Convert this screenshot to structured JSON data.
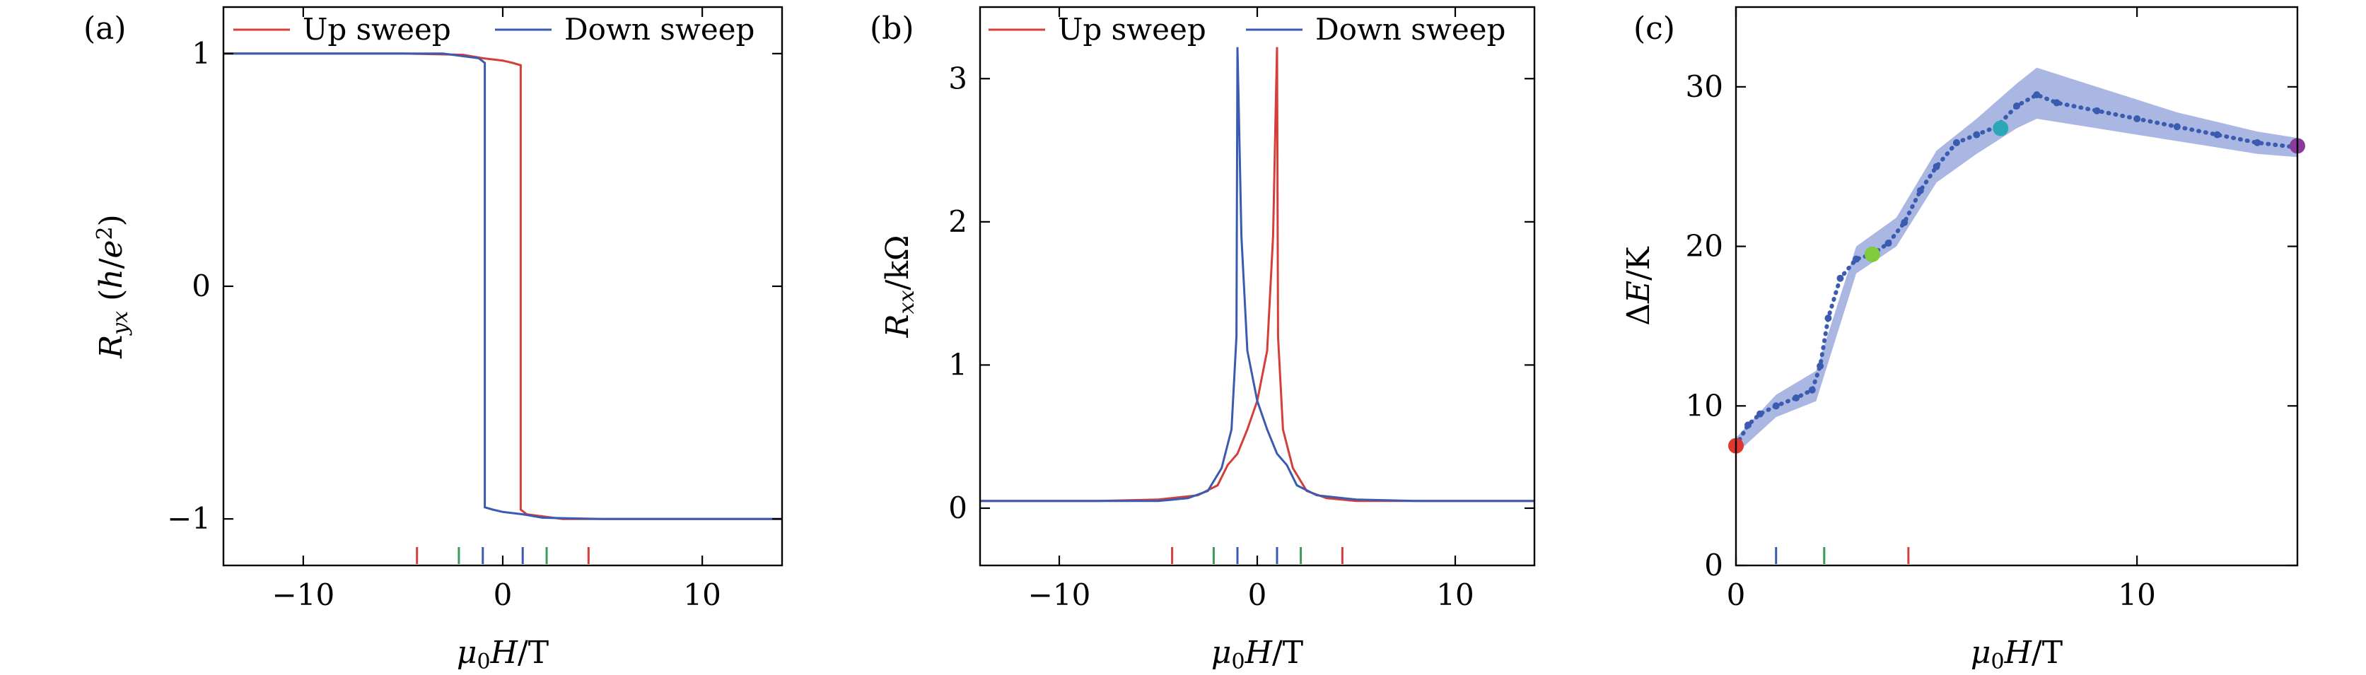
{
  "colors": {
    "up": "#d43f3a",
    "down": "#3a5bb0",
    "band": "#8f9fd9",
    "axis": "#000000"
  },
  "chart_data": [
    {
      "panel": "(a)",
      "type": "line",
      "xlabel": "μ0H/T",
      "ylabel": "Ryx (h/e²)",
      "xlim": [
        -14,
        14
      ],
      "ylim": [
        -1.2,
        1.2
      ],
      "xticks": [
        -10,
        0,
        10
      ],
      "yticks": [
        -1,
        0,
        1
      ],
      "legend": "top",
      "series": [
        {
          "name": "Up sweep",
          "color_key": "up",
          "x": [
            -14,
            -5,
            -2,
            -1,
            0,
            0.5,
            0.9,
            0.9,
            1.2,
            3,
            14
          ],
          "y": [
            1,
            1,
            0.995,
            0.98,
            0.97,
            0.96,
            0.95,
            -0.96,
            -0.98,
            -1,
            -1
          ]
        },
        {
          "name": "Down sweep",
          "color_key": "down",
          "x": [
            14,
            5,
            2,
            1,
            0,
            -0.5,
            -0.9,
            -0.9,
            -1.2,
            -3,
            -14
          ],
          "y": [
            -1,
            -1,
            -0.995,
            -0.98,
            -0.97,
            -0.96,
            -0.95,
            0.96,
            0.98,
            1,
            1
          ]
        }
      ],
      "marks": [
        {
          "x": -4.3,
          "color_key": "up"
        },
        {
          "x": -2.2,
          "color_key": "green"
        },
        {
          "x": -1.0,
          "color_key": "down"
        },
        {
          "x": 1.0,
          "color_key": "down"
        },
        {
          "x": 2.2,
          "color_key": "green"
        },
        {
          "x": 4.3,
          "color_key": "up"
        }
      ]
    },
    {
      "panel": "(b)",
      "type": "line",
      "xlabel": "μ0H/T",
      "ylabel": "Rxx/kΩ",
      "xlim": [
        -14,
        14
      ],
      "ylim": [
        -0.4,
        3.5
      ],
      "xticks": [
        -10,
        0,
        10
      ],
      "yticks": [
        0,
        1,
        2,
        3
      ],
      "legend": "top",
      "series": [
        {
          "name": "Up sweep",
          "color_key": "up",
          "x": [
            -14,
            -8,
            -5,
            -3,
            -2,
            -1.5,
            -1.0,
            -0.5,
            0,
            0.5,
            0.8,
            0.95,
            1.0,
            1.05,
            1.3,
            1.8,
            2.5,
            3.5,
            5,
            8,
            14
          ],
          "y": [
            0.05,
            0.05,
            0.06,
            0.09,
            0.16,
            0.3,
            0.38,
            0.55,
            0.75,
            1.1,
            1.9,
            2.9,
            3.22,
            1.2,
            0.55,
            0.28,
            0.12,
            0.07,
            0.05,
            0.05,
            0.05
          ]
        },
        {
          "name": "Down sweep",
          "color_key": "down",
          "x": [
            14,
            8,
            5,
            3,
            2,
            1.5,
            1.0,
            0.5,
            0,
            -0.5,
            -0.8,
            -0.95,
            -1.0,
            -1.05,
            -1.3,
            -1.8,
            -2.5,
            -3.5,
            -5,
            -8,
            -14
          ],
          "y": [
            0.05,
            0.05,
            0.06,
            0.09,
            0.16,
            0.3,
            0.38,
            0.55,
            0.75,
            1.1,
            1.9,
            2.9,
            3.22,
            1.2,
            0.55,
            0.28,
            0.12,
            0.07,
            0.05,
            0.05,
            0.05
          ]
        }
      ],
      "marks": [
        {
          "x": -4.3,
          "color_key": "up"
        },
        {
          "x": -2.2,
          "color_key": "green"
        },
        {
          "x": -1.0,
          "color_key": "down"
        },
        {
          "x": 1.0,
          "color_key": "down"
        },
        {
          "x": 2.2,
          "color_key": "green"
        },
        {
          "x": 4.3,
          "color_key": "up"
        }
      ]
    },
    {
      "panel": "(c)",
      "type": "scatter",
      "xlabel": "μ0H/T",
      "ylabel": "ΔE/K",
      "xlim": [
        0,
        14
      ],
      "ylim": [
        0,
        35
      ],
      "xticks": [
        0,
        10
      ],
      "yticks": [
        0,
        10,
        20,
        30
      ],
      "series": [
        {
          "name": "",
          "color_key": "down",
          "x": [
            0,
            0.3,
            0.6,
            1.0,
            1.5,
            1.9,
            2.1,
            2.3,
            2.6,
            3.0,
            3.4,
            3.8,
            4.2,
            4.6,
            5.0,
            5.5,
            6.0,
            6.5,
            7.0,
            7.5,
            8.0,
            9.0,
            10.0,
            11.0,
            12.0,
            13.0,
            14.0
          ],
          "y": [
            7.5,
            8.8,
            9.5,
            10.0,
            10.5,
            11.0,
            12.5,
            15.5,
            18.0,
            19.2,
            19.5,
            20.2,
            21.5,
            23.5,
            25.0,
            26.5,
            27.0,
            27.5,
            28.8,
            29.5,
            29.0,
            28.5,
            28.0,
            27.5,
            27.0,
            26.5,
            26.2
          ]
        },
        {
          "name": "",
          "color_key": "band",
          "x": [
            0,
            1,
            2,
            3,
            4,
            5,
            6,
            7,
            7.5,
            8,
            9,
            10,
            11,
            12,
            13,
            14
          ],
          "y_low": [
            7.0,
            9.3,
            10.3,
            18.3,
            20.0,
            24.0,
            25.8,
            27.4,
            28.0,
            27.8,
            27.4,
            27.0,
            26.6,
            26.2,
            25.8,
            25.6
          ],
          "y_high": [
            8.0,
            10.7,
            12.2,
            20.0,
            21.8,
            26.0,
            28.0,
            30.2,
            31.2,
            30.8,
            30.0,
            29.2,
            28.4,
            27.8,
            27.2,
            26.8
          ]
        }
      ],
      "highlights": [
        {
          "x": 0,
          "y": 7.5,
          "color": "#e0382f"
        },
        {
          "x": 3.4,
          "y": 19.5,
          "color": "#7fcb3e"
        },
        {
          "x": 6.6,
          "y": 27.4,
          "color": "#2aa8b8"
        },
        {
          "x": 14.0,
          "y": 26.3,
          "color": "#8a3a9a"
        }
      ],
      "marks": [
        {
          "x": 1.0,
          "color_key": "down"
        },
        {
          "x": 2.2,
          "color_key": "green"
        },
        {
          "x": 4.3,
          "color_key": "up"
        }
      ]
    }
  ],
  "mark_colors": {
    "up": "#d43f3a",
    "down": "#3a5bb0",
    "green": "#3e9a58"
  }
}
